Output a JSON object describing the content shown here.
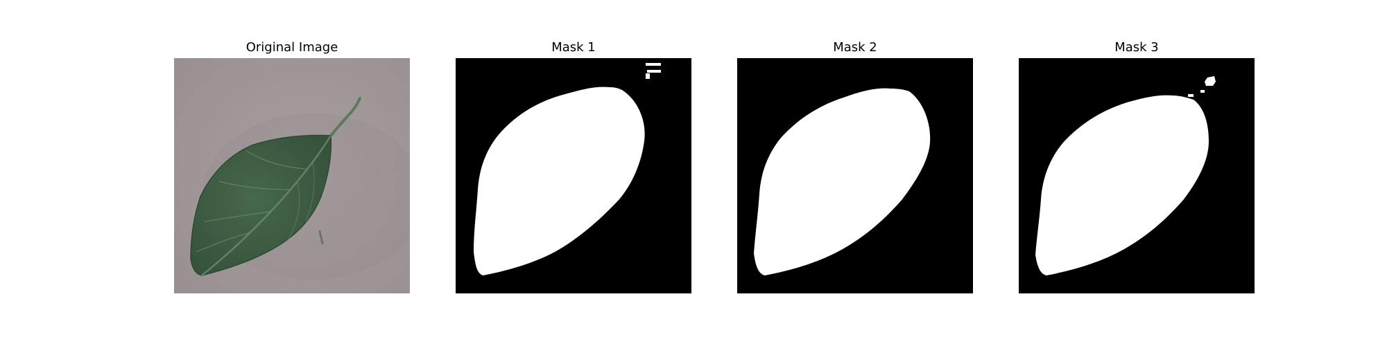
{
  "panels": [
    {
      "title": "Original Image",
      "kind": "photo"
    },
    {
      "title": "Mask 1",
      "kind": "mask"
    },
    {
      "title": "Mask 2",
      "kind": "mask"
    },
    {
      "title": "Mask 3",
      "kind": "mask"
    }
  ],
  "colors": {
    "background": "#ffffff",
    "photo_background": "#a39b9b",
    "leaf": "#3f5f45",
    "leaf_vein": "#6c8d70",
    "stem": "#5b7a5c",
    "mask_background": "#000000",
    "mask_foreground": "#ffffff"
  }
}
